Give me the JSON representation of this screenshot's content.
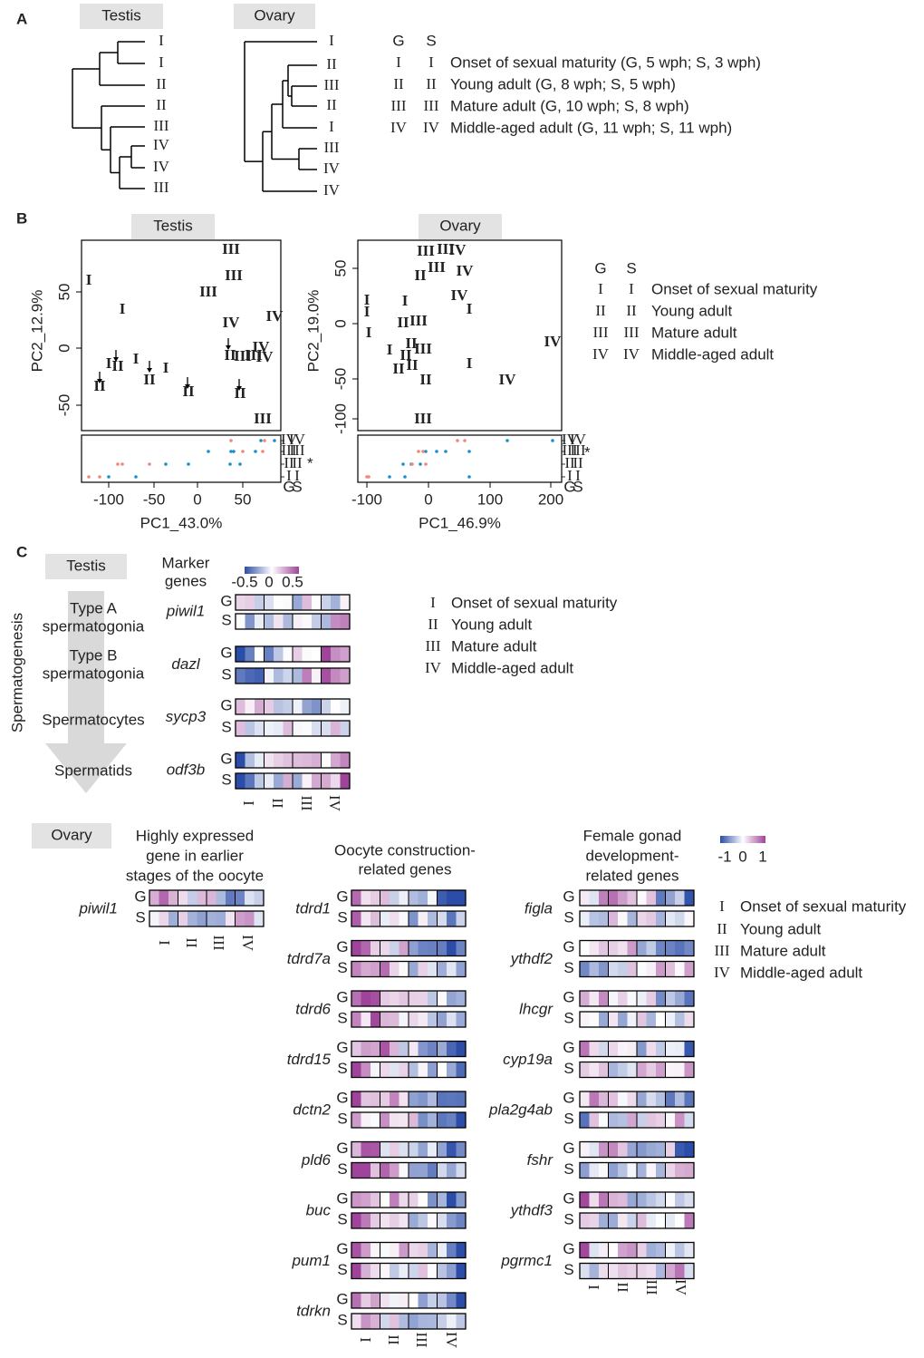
{
  "panel_labels": [
    "A",
    "B",
    "C"
  ],
  "groups": {
    "G": "G",
    "S": "S"
  },
  "numerals": [
    "I",
    "II",
    "III",
    "IV"
  ],
  "asterisk": "*",
  "panel_a": {
    "testis_title": "Testis",
    "ovary_title": "Ovary",
    "legend": [
      "Onset of sexual maturity (G, 5 wph; S, 3 wph)",
      "Young adult (G, 8 wph; S, 5 wph)",
      "Mature adult  (G, 10 wph; S, 8 wph)",
      "Middle-aged adult (G, 11 wph; S, 11 wph)"
    ]
  },
  "panel_b": {
    "testis": {
      "title": "Testis",
      "xlabel": "PC1_43.0%",
      "ylabel": "PC2_12.9%",
      "xticks": [
        "-100",
        "-50",
        "0",
        "50"
      ],
      "yticks": [
        "-50",
        "0",
        "50"
      ]
    },
    "ovary": {
      "title": "Ovary",
      "xlabel": "PC1_46.9%",
      "ylabel": "PC2_19.0%",
      "xticks": [
        "-100",
        "0",
        "100",
        "200"
      ],
      "yticks": [
        "-100",
        "-50",
        "0",
        "50"
      ]
    },
    "legend": [
      "Onset of sexual maturity",
      "Young adult",
      "Mature adult",
      "Middle-aged adult"
    ]
  },
  "panel_c": {
    "testis_title": "Testis",
    "marker_genes": [
      "Marker",
      "genes"
    ],
    "testis_scale": [
      "-0.5",
      "0",
      "0.5"
    ],
    "process": "Spermatogenesis",
    "stages": [
      [
        "Type A",
        "spermatogonia"
      ],
      [
        "Type B",
        "spermatogonia"
      ],
      [
        "Spermatocytes"
      ],
      [
        "Spermatids"
      ]
    ],
    "testis_genes": [
      "piwil1",
      "dazl",
      "sycp3",
      "odf3b"
    ],
    "ovary_title": "Ovary",
    "ovary_scale": [
      "-1",
      "0",
      "1"
    ],
    "ovary_groups": [
      {
        "title": [
          "Highly expressed",
          "gene in earlier",
          "stages of the oocyte"
        ],
        "genes": [
          "piwil1"
        ]
      },
      {
        "title": [
          "Oocyte construction-",
          "related genes"
        ],
        "genes": [
          "tdrd1",
          "tdrd7a",
          "tdrd6",
          "tdrd15",
          "dctn2",
          "pld6",
          "buc",
          "pum1",
          "tdrkn"
        ]
      },
      {
        "title": [
          "Female gonad",
          "development-",
          "related genes"
        ],
        "genes": [
          "figla",
          "ythdf2",
          "lhcgr",
          "cyp19a",
          "pla2g4ab",
          "fshr",
          "ythdf3",
          "pgrmc1"
        ]
      }
    ]
  }
}
